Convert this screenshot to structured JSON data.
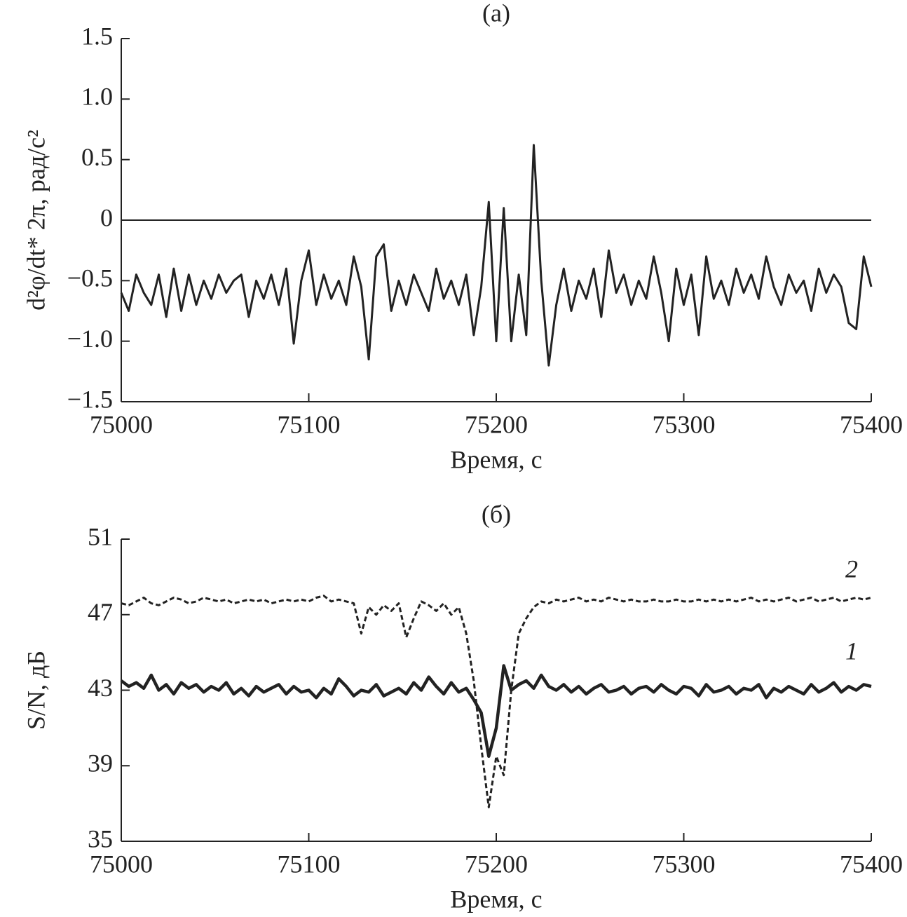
{
  "chart_data": [
    {
      "type": "line",
      "title": "(а)",
      "xlabel": "Время, с",
      "ylabel": "d²φ/dt* 2π, рад/с²",
      "x": [
        75000,
        75004,
        75008,
        75012,
        75016,
        75020,
        75024,
        75028,
        75032,
        75036,
        75040,
        75044,
        75048,
        75052,
        75056,
        75060,
        75064,
        75068,
        75072,
        75076,
        75080,
        75084,
        75088,
        75092,
        75096,
        75100,
        75104,
        75108,
        75112,
        75116,
        75120,
        75124,
        75128,
        75132,
        75136,
        75140,
        75144,
        75148,
        75152,
        75156,
        75160,
        75164,
        75168,
        75172,
        75176,
        75180,
        75184,
        75188,
        75192,
        75196,
        75200,
        75204,
        75208,
        75212,
        75216,
        75220,
        75224,
        75228,
        75232,
        75236,
        75240,
        75244,
        75248,
        75252,
        75256,
        75260,
        75264,
        75268,
        75272,
        75276,
        75280,
        75284,
        75288,
        75292,
        75296,
        75300,
        75304,
        75308,
        75312,
        75316,
        75320,
        75324,
        75328,
        75332,
        75336,
        75340,
        75344,
        75348,
        75352,
        75356,
        75360,
        75364,
        75368,
        75372,
        75376,
        75380,
        75384,
        75388,
        75392,
        75396,
        75400
      ],
      "values": [
        -0.6,
        -0.75,
        -0.45,
        -0.6,
        -0.7,
        -0.45,
        -0.8,
        -0.4,
        -0.75,
        -0.45,
        -0.7,
        -0.5,
        -0.65,
        -0.45,
        -0.6,
        -0.5,
        -0.45,
        -0.8,
        -0.5,
        -0.65,
        -0.45,
        -0.7,
        -0.4,
        -1.02,
        -0.5,
        -0.25,
        -0.7,
        -0.45,
        -0.65,
        -0.5,
        -0.7,
        -0.3,
        -0.55,
        -1.15,
        -0.3,
        -0.2,
        -0.75,
        -0.5,
        -0.7,
        -0.45,
        -0.6,
        -0.75,
        -0.4,
        -0.65,
        -0.5,
        -0.7,
        -0.45,
        -0.95,
        -0.55,
        0.15,
        -1.0,
        0.1,
        -1.0,
        -0.45,
        -0.95,
        0.62,
        -0.5,
        -1.2,
        -0.7,
        -0.4,
        -0.75,
        -0.5,
        -0.65,
        -0.4,
        -0.8,
        -0.25,
        -0.6,
        -0.45,
        -0.7,
        -0.5,
        -0.65,
        -0.3,
        -0.6,
        -1.0,
        -0.4,
        -0.7,
        -0.45,
        -0.95,
        -0.3,
        -0.65,
        -0.5,
        -0.7,
        -0.4,
        -0.6,
        -0.45,
        -0.65,
        -0.3,
        -0.55,
        -0.7,
        -0.45,
        -0.6,
        -0.5,
        -0.75,
        -0.4,
        -0.6,
        -0.45,
        -0.55,
        -0.85,
        -0.9,
        -0.3,
        -0.55
      ],
      "color": "#222222",
      "xlim": [
        75000,
        75400
      ],
      "xticks": [
        75000,
        75100,
        75200,
        75300,
        75400
      ],
      "ylim": [
        -1.5,
        1.5
      ],
      "yticks": [
        {
          "value": -1.5,
          "label": "−1.5"
        },
        {
          "value": -1.0,
          "label": "−1.0"
        },
        {
          "value": -0.5,
          "label": "−0.5"
        },
        0,
        0.5,
        {
          "value": 1.0,
          "label": "1.0"
        },
        1.5
      ],
      "hlines": [
        0
      ]
    },
    {
      "type": "line",
      "title": "(б)",
      "xlabel": "Время, с",
      "ylabel": "S/N, дБ",
      "x": [
        75000,
        75004,
        75008,
        75012,
        75016,
        75020,
        75024,
        75028,
        75032,
        75036,
        75040,
        75044,
        75048,
        75052,
        75056,
        75060,
        75064,
        75068,
        75072,
        75076,
        75080,
        75084,
        75088,
        75092,
        75096,
        75100,
        75104,
        75108,
        75112,
        75116,
        75120,
        75124,
        75128,
        75132,
        75136,
        75140,
        75144,
        75148,
        75152,
        75156,
        75160,
        75164,
        75168,
        75172,
        75176,
        75180,
        75184,
        75188,
        75192,
        75196,
        75200,
        75204,
        75208,
        75212,
        75216,
        75220,
        75224,
        75228,
        75232,
        75236,
        75240,
        75244,
        75248,
        75252,
        75256,
        75260,
        75264,
        75268,
        75272,
        75276,
        75280,
        75284,
        75288,
        75292,
        75296,
        75300,
        75304,
        75308,
        75312,
        75316,
        75320,
        75324,
        75328,
        75332,
        75336,
        75340,
        75344,
        75348,
        75352,
        75356,
        75360,
        75364,
        75368,
        75372,
        75376,
        75380,
        75384,
        75388,
        75392,
        75396,
        75400
      ],
      "series": [
        {
          "name": "1",
          "color": "#222222",
          "dash": false,
          "values": [
            43.5,
            43.2,
            43.4,
            43.1,
            43.8,
            43.0,
            43.3,
            42.8,
            43.4,
            43.1,
            43.3,
            42.9,
            43.2,
            43.0,
            43.4,
            42.8,
            43.1,
            42.7,
            43.2,
            42.9,
            43.1,
            43.3,
            42.8,
            43.2,
            42.9,
            43.0,
            42.6,
            43.1,
            42.8,
            43.6,
            43.2,
            42.7,
            43.0,
            42.9,
            43.3,
            42.7,
            42.9,
            43.1,
            42.8,
            43.4,
            43.0,
            43.7,
            43.2,
            42.8,
            43.4,
            42.9,
            43.1,
            42.5,
            41.8,
            39.5,
            41.0,
            44.3,
            43.0,
            43.3,
            43.5,
            43.1,
            43.8,
            43.2,
            43.0,
            43.3,
            42.9,
            43.2,
            42.8,
            43.1,
            43.3,
            42.9,
            43.0,
            43.2,
            42.8,
            43.1,
            43.2,
            42.9,
            43.3,
            43.0,
            42.8,
            43.2,
            43.1,
            42.7,
            43.3,
            42.9,
            43.0,
            43.2,
            42.8,
            43.1,
            43.0,
            43.3,
            42.6,
            43.1,
            42.9,
            43.2,
            43.0,
            42.8,
            43.3,
            42.9,
            43.1,
            43.4,
            42.9,
            43.2,
            43.0,
            43.3,
            43.2
          ]
        },
        {
          "name": "2",
          "color": "#222222",
          "dash": true,
          "values": [
            47.6,
            47.5,
            47.7,
            47.9,
            47.6,
            47.5,
            47.7,
            47.9,
            47.8,
            47.6,
            47.7,
            47.9,
            47.8,
            47.7,
            47.8,
            47.6,
            47.7,
            47.8,
            47.7,
            47.8,
            47.6,
            47.7,
            47.8,
            47.7,
            47.8,
            47.7,
            47.9,
            48.0,
            47.7,
            47.8,
            47.7,
            47.6,
            46.0,
            47.4,
            47.0,
            47.5,
            47.2,
            47.6,
            45.8,
            46.8,
            47.7,
            47.5,
            47.2,
            47.6,
            47.0,
            47.4,
            46.0,
            43.5,
            40.0,
            36.8,
            39.5,
            38.5,
            43.0,
            46.0,
            46.8,
            47.4,
            47.7,
            47.6,
            47.8,
            47.7,
            47.8,
            47.9,
            47.7,
            47.8,
            47.7,
            47.9,
            47.8,
            47.7,
            47.8,
            47.7,
            47.7,
            47.8,
            47.7,
            47.7,
            47.8,
            47.7,
            47.7,
            47.8,
            47.7,
            47.8,
            47.7,
            47.8,
            47.7,
            47.8,
            47.9,
            47.7,
            47.8,
            47.7,
            47.8,
            47.9,
            47.7,
            47.8,
            47.9,
            47.7,
            47.8,
            47.9,
            47.7,
            47.8,
            47.9,
            47.8,
            47.9
          ]
        }
      ],
      "xlim": [
        75000,
        75400
      ],
      "xticks": [
        75000,
        75100,
        75200,
        75300,
        75400
      ],
      "ylim": [
        35,
        51
      ],
      "yticks": [
        35,
        39,
        43,
        47,
        51
      ]
    }
  ]
}
